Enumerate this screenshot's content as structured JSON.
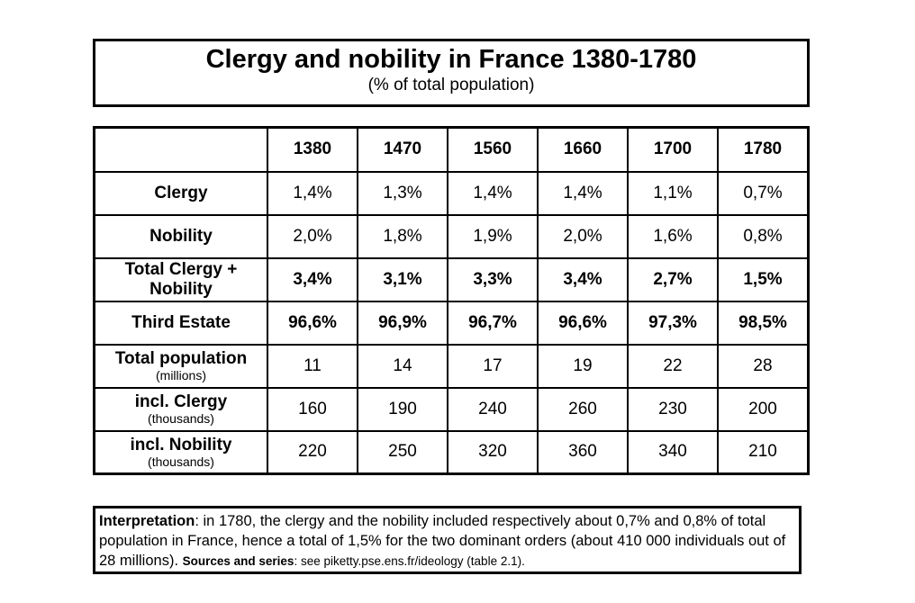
{
  "header": {
    "title": "Clergy and nobility in France 1380-1780",
    "subtitle": "(% of total population)"
  },
  "table": {
    "years": [
      "1380",
      "1470",
      "1560",
      "1660",
      "1700",
      "1780"
    ],
    "rows": [
      {
        "label": "Clergy",
        "unit": "",
        "bold": false,
        "values": [
          "1,4%",
          "1,3%",
          "1,4%",
          "1,4%",
          "1,1%",
          "0,7%"
        ]
      },
      {
        "label": "Nobility",
        "unit": "",
        "bold": false,
        "values": [
          "2,0%",
          "1,8%",
          "1,9%",
          "2,0%",
          "1,6%",
          "0,8%"
        ]
      },
      {
        "label": "Total Clergy + Nobility",
        "unit": "",
        "bold": true,
        "values": [
          "3,4%",
          "3,1%",
          "3,3%",
          "3,4%",
          "2,7%",
          "1,5%"
        ]
      },
      {
        "label": "Third Estate",
        "unit": "",
        "bold": true,
        "values": [
          "96,6%",
          "96,9%",
          "96,7%",
          "96,6%",
          "97,3%",
          "98,5%"
        ]
      },
      {
        "label": "Total population",
        "unit": "(millions)",
        "bold": false,
        "values": [
          "11",
          "14",
          "17",
          "19",
          "22",
          "28"
        ]
      },
      {
        "label": "incl. Clergy",
        "unit": "(thousands)",
        "bold": false,
        "values": [
          "160",
          "190",
          "240",
          "260",
          "230",
          "200"
        ]
      },
      {
        "label": "incl. Nobility",
        "unit": "(thousands)",
        "bold": false,
        "values": [
          "220",
          "250",
          "320",
          "360",
          "340",
          "210"
        ]
      }
    ]
  },
  "note": {
    "lead": "Interpretation",
    "text": ": in 1780, the clergy and the nobility included respectively about 0,7% and 0,8% of total population in France, hence a total of 1,5% for the two dominant orders (about 410 000 individuals out of 28 millions). ",
    "sources_label": "Sources and series",
    "sources_text": ": see piketty.pse.ens.fr/ideology (table 2.1)."
  }
}
